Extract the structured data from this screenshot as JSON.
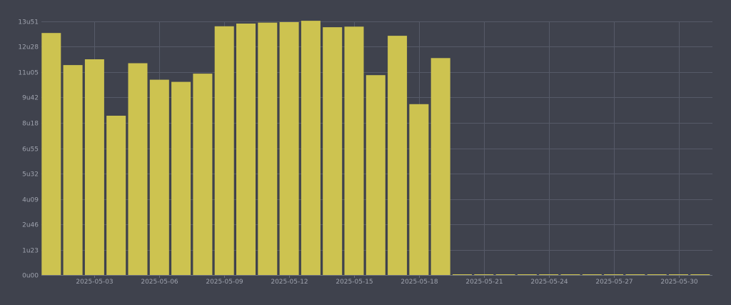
{
  "chart_data": {
    "type": "bar",
    "title": "",
    "xlabel": "",
    "ylabel": "",
    "bar_color": "#cdc350",
    "background_color": "#3f424d",
    "grid_color": "#565a68",
    "tick_label_color": "#9ea2ad",
    "grid": true,
    "value_unit": "minutes",
    "ylim": [
      0,
      831
    ],
    "y_ticks": [
      {
        "value": 0,
        "label": "0u00"
      },
      {
        "value": 83,
        "label": "1u23"
      },
      {
        "value": 166,
        "label": "2u46"
      },
      {
        "value": 249,
        "label": "4u09"
      },
      {
        "value": 332,
        "label": "5u32"
      },
      {
        "value": 415,
        "label": "6u55"
      },
      {
        "value": 498,
        "label": "8u18"
      },
      {
        "value": 582,
        "label": "9u42"
      },
      {
        "value": 665,
        "label": "11u05"
      },
      {
        "value": 748,
        "label": "12u28"
      },
      {
        "value": 831,
        "label": "13u51"
      }
    ],
    "x_ticks": [
      {
        "date": "2025-05-03",
        "label": "2025-05-03"
      },
      {
        "date": "2025-05-06",
        "label": "2025-05-06"
      },
      {
        "date": "2025-05-09",
        "label": "2025-05-09"
      },
      {
        "date": "2025-05-12",
        "label": "2025-05-12"
      },
      {
        "date": "2025-05-15",
        "label": "2025-05-15"
      },
      {
        "date": "2025-05-18",
        "label": "2025-05-18"
      },
      {
        "date": "2025-05-21",
        "label": "2025-05-21"
      },
      {
        "date": "2025-05-24",
        "label": "2025-05-24"
      },
      {
        "date": "2025-05-27",
        "label": "2025-05-27"
      },
      {
        "date": "2025-05-30",
        "label": "2025-05-30"
      }
    ],
    "x": [
      "2025-05-01",
      "2025-05-02",
      "2025-05-03",
      "2025-05-04",
      "2025-05-05",
      "2025-05-06",
      "2025-05-07",
      "2025-05-08",
      "2025-05-09",
      "2025-05-10",
      "2025-05-11",
      "2025-05-12",
      "2025-05-13",
      "2025-05-14",
      "2025-05-15",
      "2025-05-16",
      "2025-05-17",
      "2025-05-18",
      "2025-05-19",
      "2025-05-20",
      "2025-05-21",
      "2025-05-22",
      "2025-05-23",
      "2025-05-24",
      "2025-05-25",
      "2025-05-26",
      "2025-05-27",
      "2025-05-28",
      "2025-05-29",
      "2025-05-30",
      "2025-05-31"
    ],
    "values": [
      793,
      688,
      707,
      522,
      694,
      640,
      633,
      660,
      815,
      824,
      827,
      829,
      833,
      812,
      814,
      655,
      784,
      560,
      711,
      0,
      0,
      0,
      0,
      0,
      0,
      0,
      0,
      0,
      0,
      0,
      0
    ]
  }
}
